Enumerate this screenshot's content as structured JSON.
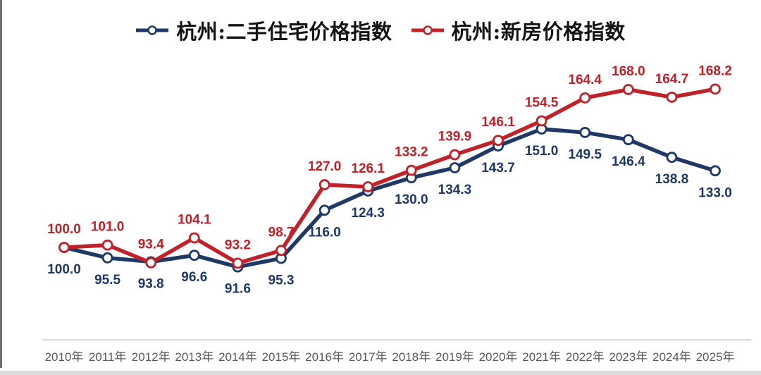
{
  "page": {
    "background": "#ffffff",
    "left_edge_color": "#6e6e6e",
    "bottom_strip_color": "#dcdcdc"
  },
  "legend": {
    "items": [
      {
        "label": "杭州:二手住宅价格指数",
        "color": "#1f3864"
      },
      {
        "label": "杭州:新房价格指数",
        "color": "#c0222a"
      }
    ]
  },
  "chart_data": {
    "type": "line",
    "title": "",
    "xlabel": "",
    "ylabel": "",
    "grid": false,
    "legend_position": "top-center",
    "axis_color": "#d9d9d9",
    "tick_label_color": "#595959",
    "marker_style": "open-circle",
    "value_label_decimals": 1,
    "categories": [
      "2010年",
      "2011年",
      "2012年",
      "2013年",
      "2014年",
      "2015年",
      "2016年",
      "2017年",
      "2018年",
      "2019年",
      "2020年",
      "2021年",
      "2022年",
      "2023年",
      "2024年",
      "2025年"
    ],
    "series": [
      {
        "name": "杭州:二手住宅价格指数",
        "color": "#1f3864",
        "label_position": "below",
        "values": [
          100.0,
          95.5,
          93.8,
          96.6,
          91.6,
          95.3,
          116.0,
          124.3,
          130.0,
          134.3,
          143.7,
          151.0,
          149.5,
          146.4,
          138.8,
          133.0
        ]
      },
      {
        "name": "杭州:新房价格指数",
        "color": "#c0222a",
        "label_position": "above",
        "values": [
          100.0,
          101.0,
          93.4,
          104.1,
          93.2,
          98.7,
          127.0,
          126.1,
          133.2,
          139.9,
          146.1,
          154.5,
          164.4,
          168.0,
          164.7,
          168.2
        ]
      }
    ]
  }
}
